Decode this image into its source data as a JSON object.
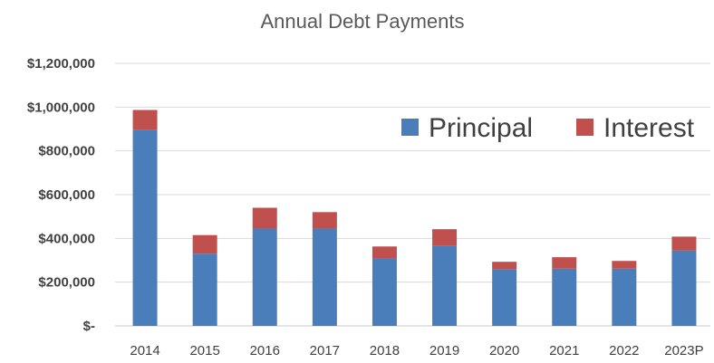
{
  "chart_data": {
    "type": "bar",
    "stacked": true,
    "title": "Annual Debt Payments",
    "xlabel": "",
    "ylabel": "",
    "categories": [
      "2014",
      "2015",
      "2016",
      "2017",
      "2018",
      "2019",
      "2020",
      "2021",
      "2022",
      "2023P"
    ],
    "series": [
      {
        "name": "Principal",
        "color": "#4a7ebb",
        "values": [
          895000,
          330000,
          445000,
          445000,
          308000,
          365000,
          258000,
          262000,
          262000,
          345000
        ]
      },
      {
        "name": "Interest",
        "color": "#c0504d",
        "values": [
          92000,
          85000,
          95000,
          75000,
          55000,
          77000,
          35000,
          52000,
          35000,
          63000
        ]
      }
    ],
    "ylim": [
      0,
      1200000
    ],
    "yticks": [
      0,
      200000,
      400000,
      600000,
      800000,
      1000000,
      1200000
    ],
    "ytick_labels": [
      "$-",
      "$200,000",
      "$400,000",
      "$600,000",
      "$800,000",
      "$1,000,000",
      "$1,200,000"
    ],
    "grid": true,
    "legend_position": "top-right"
  }
}
